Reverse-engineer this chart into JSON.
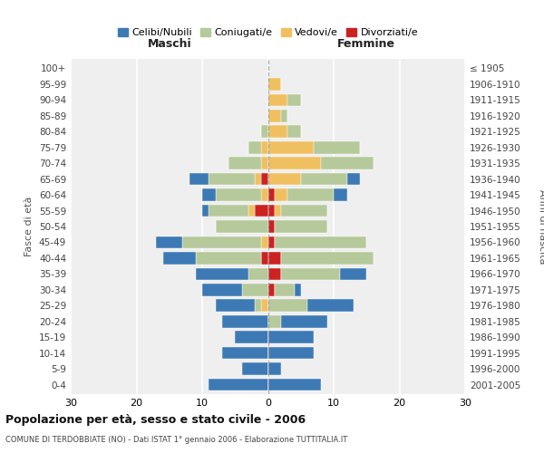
{
  "age_groups": [
    "0-4",
    "5-9",
    "10-14",
    "15-19",
    "20-24",
    "25-29",
    "30-34",
    "35-39",
    "40-44",
    "45-49",
    "50-54",
    "55-59",
    "60-64",
    "65-69",
    "70-74",
    "75-79",
    "80-84",
    "85-89",
    "90-94",
    "95-99",
    "100+"
  ],
  "birth_years": [
    "2001-2005",
    "1996-2000",
    "1991-1995",
    "1986-1990",
    "1981-1985",
    "1976-1980",
    "1971-1975",
    "1966-1970",
    "1961-1965",
    "1956-1960",
    "1951-1955",
    "1946-1950",
    "1941-1945",
    "1936-1940",
    "1931-1935",
    "1926-1930",
    "1921-1925",
    "1916-1920",
    "1911-1915",
    "1906-1910",
    "≤ 1905"
  ],
  "colors": {
    "celibi": "#3d7ab5",
    "coniugati": "#b5c99a",
    "vedovi": "#f0c060",
    "divorziati": "#cc2222"
  },
  "maschi": {
    "celibi": [
      9,
      4,
      7,
      5,
      7,
      6,
      6,
      8,
      5,
      4,
      0,
      1,
      2,
      3,
      0,
      0,
      0,
      0,
      0,
      0,
      0
    ],
    "coniugati": [
      0,
      0,
      0,
      0,
      0,
      1,
      4,
      3,
      10,
      12,
      8,
      6,
      7,
      7,
      5,
      2,
      1,
      0,
      0,
      0,
      0
    ],
    "vedovi": [
      0,
      0,
      0,
      0,
      0,
      1,
      0,
      0,
      0,
      1,
      0,
      1,
      1,
      1,
      1,
      1,
      0,
      0,
      0,
      0,
      0
    ],
    "divorziati": [
      0,
      0,
      0,
      0,
      0,
      0,
      0,
      0,
      1,
      0,
      0,
      2,
      0,
      1,
      0,
      0,
      0,
      0,
      0,
      0,
      0
    ]
  },
  "femmine": {
    "celibi": [
      8,
      2,
      7,
      7,
      7,
      7,
      1,
      4,
      0,
      0,
      0,
      0,
      2,
      2,
      0,
      0,
      0,
      0,
      0,
      0,
      0
    ],
    "coniugati": [
      0,
      0,
      0,
      0,
      2,
      6,
      3,
      9,
      14,
      14,
      8,
      7,
      7,
      7,
      8,
      7,
      2,
      1,
      2,
      0,
      0
    ],
    "vedovi": [
      0,
      0,
      0,
      0,
      0,
      0,
      0,
      0,
      0,
      0,
      0,
      1,
      2,
      5,
      8,
      7,
      3,
      2,
      3,
      2,
      0
    ],
    "divorziati": [
      0,
      0,
      0,
      0,
      0,
      0,
      1,
      2,
      2,
      1,
      1,
      1,
      1,
      0,
      0,
      0,
      0,
      0,
      0,
      0,
      0
    ]
  },
  "xlim": 30,
  "title": "Popolazione per età, sesso e stato civile - 2006",
  "subtitle": "COMUNE DI TERDOBBIATE (NO) - Dati ISTAT 1° gennaio 2006 - Elaborazione TUTTITALIA.IT",
  "ylabel_left": "Fasce di età",
  "ylabel_right": "Anni di nascita",
  "xlabel_maschi": "Maschi",
  "xlabel_femmine": "Femmine",
  "legend_labels": [
    "Celibi/Nubili",
    "Coniugati/e",
    "Vedovi/e",
    "Divorziati/e"
  ],
  "bg_color": "#efefef",
  "bar_height": 0.78
}
